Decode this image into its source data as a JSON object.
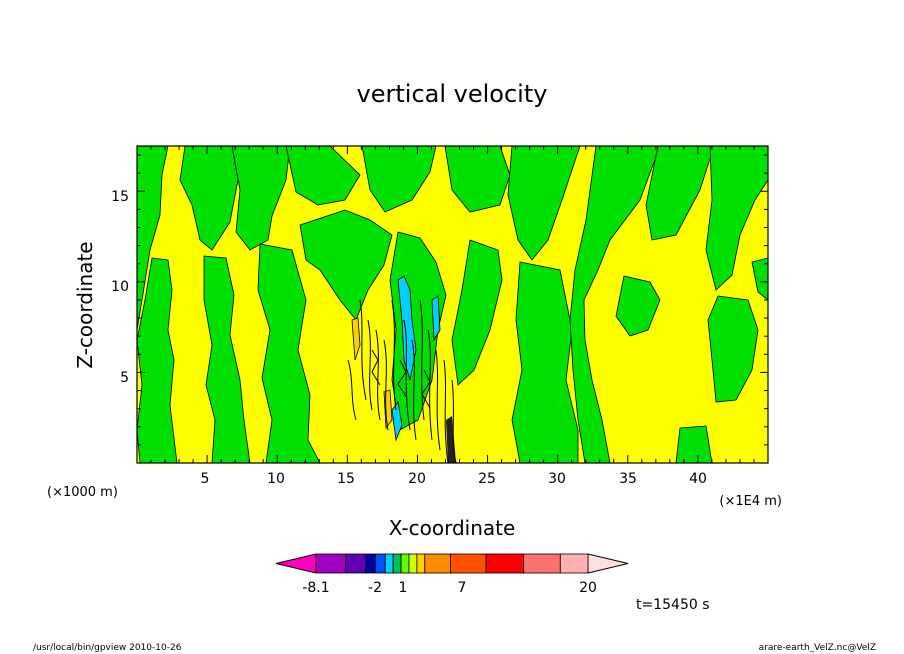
{
  "chart_data": {
    "type": "heatmap",
    "title": "vertical velocity",
    "xlabel": "X-coordinate",
    "ylabel": "Z-coordinate",
    "x_units_left": "(×1000 m)",
    "x_units_right": "(×1E4 m)",
    "xlim": [
      0,
      45
    ],
    "ylim": [
      0,
      17.5
    ],
    "xticks": [
      5,
      10,
      15,
      20,
      25,
      30,
      35,
      40
    ],
    "yticks": [
      5,
      10,
      15
    ],
    "grid": false,
    "colorbar": {
      "ticks": [
        {
          "label": "-8.1",
          "value": -8.1
        },
        {
          "label": "-2",
          "value": -2
        },
        {
          "label": "1",
          "value": 1
        },
        {
          "label": "7",
          "value": 7
        },
        {
          "label": "20",
          "value": 20
        }
      ],
      "colors": [
        "#ff00c0",
        "#a000c0",
        "#6000b0",
        "#0000a0",
        "#0050ff",
        "#00d0ff",
        "#00c060",
        "#60ff00",
        "#d0ff00",
        "#ffd000",
        "#ff8c00",
        "#ff5000",
        "#ff0000",
        "#ff7070",
        "#ffb0b0",
        "#ffe0e0"
      ]
    },
    "background_color": "#ffff00",
    "positive_region_color": "#ffff00",
    "negative_region_color": "#00e000",
    "time_label": "t=15450 s"
  },
  "footer": {
    "left": "/usr/local/bin/gpview   2010-10-26",
    "right": "arare-earth_VelZ.nc@VelZ"
  }
}
